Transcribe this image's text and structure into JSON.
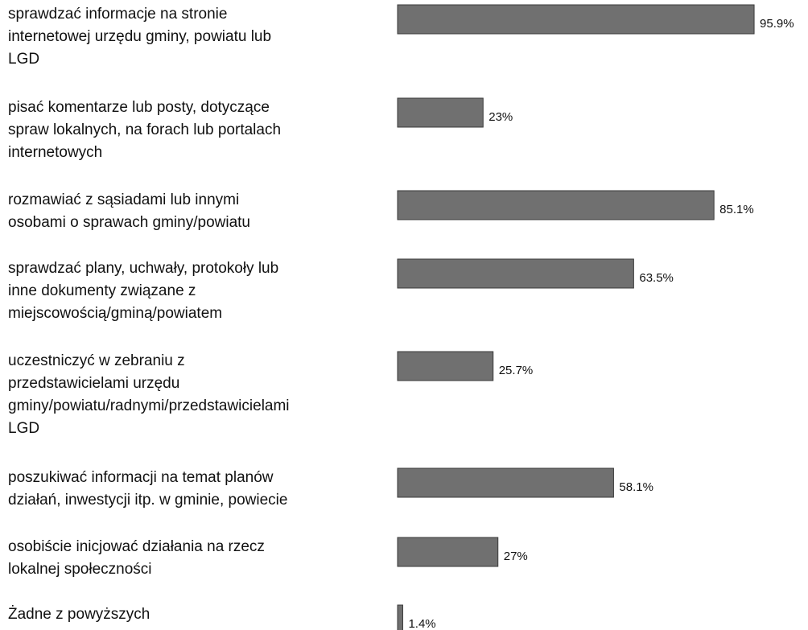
{
  "chart_data": {
    "type": "bar",
    "orientation": "horizontal",
    "categories": [
      "sprawdzać informacje na stronie\ninternetowej urzędu gminy, powiatu lub\nLGD",
      "pisać komentarze lub posty, dotyczące\nspraw lokalnych, na forach lub portalach\ninternetowych",
      "rozmawiać z sąsiadami lub innymi\nosobami o sprawach gminy/powiatu",
      "sprawdzać plany, uchwały, protokoły lub\ninne dokumenty związane z\nmiejscowością/gminą/powiatem",
      "uczestniczyć w zebraniu z\nprzedstawicielami urzędu\ngminy/powiatu/radnymi/przedstawicielami\nLGD",
      "poszukiwać informacji na temat planów\ndziałań, inwestycji itp. w gminie, powiecie",
      "osobiście inicjować działania na rzecz\nlokalnej społeczności",
      "Żadne z powyższych"
    ],
    "values": [
      95.9,
      23,
      85.1,
      63.5,
      25.7,
      58.1,
      27,
      1.4
    ],
    "value_labels": [
      "95.9%",
      "23%",
      "85.1%",
      "63.5%",
      "25.7%",
      "58.1%",
      "27%",
      "1.4%"
    ],
    "color": "#707070",
    "xlim": [
      0,
      100
    ]
  }
}
